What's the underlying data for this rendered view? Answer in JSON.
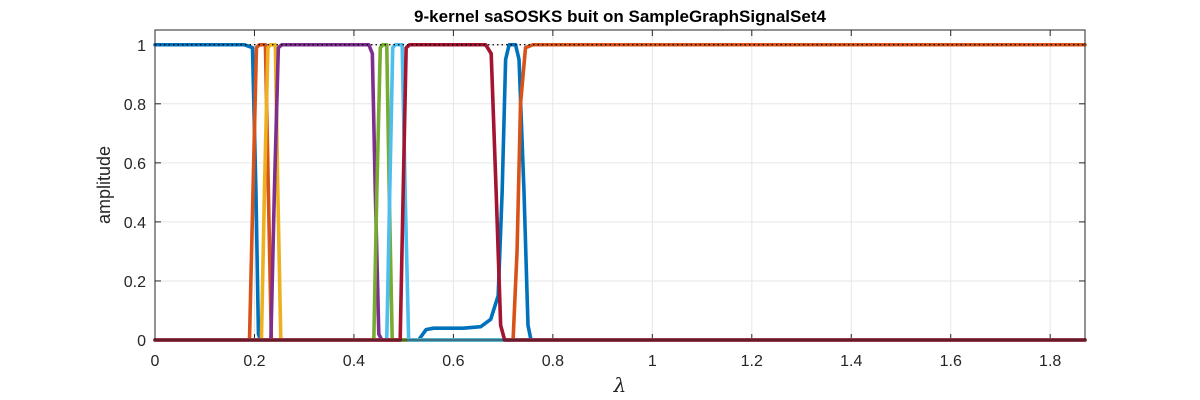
{
  "chart_data": {
    "type": "line",
    "title": "9-kernel saSOSKS buit on SampleGraphSignalSet4",
    "xlabel": "λ",
    "ylabel": "amplitude",
    "xlim": [
      0,
      1.87
    ],
    "ylim": [
      0,
      1.05
    ],
    "xticks": [
      "0",
      "0.2",
      "0.4",
      "0.6",
      "0.8",
      "1",
      "1.2",
      "1.4",
      "1.6",
      "1.8"
    ],
    "yticks": [
      "0",
      "0.2",
      "0.4",
      "0.6",
      "0.8",
      "1"
    ],
    "grid": true,
    "legend": "none",
    "series": [
      {
        "color": "#0072BD",
        "points": [
          [
            0,
            1
          ],
          [
            0.18,
            1
          ],
          [
            0.196,
            0.99
          ],
          [
            0.203,
            0.5
          ],
          [
            0.208,
            0.02
          ],
          [
            0.212,
            0
          ],
          [
            0.53,
            0
          ],
          [
            0.545,
            0.035
          ],
          [
            0.56,
            0.04
          ],
          [
            0.62,
            0.04
          ],
          [
            0.655,
            0.045
          ],
          [
            0.675,
            0.07
          ],
          [
            0.69,
            0.15
          ],
          [
            0.698,
            0.5
          ],
          [
            0.705,
            0.95
          ],
          [
            0.712,
            1
          ],
          [
            0.725,
            1
          ],
          [
            0.732,
            0.95
          ],
          [
            0.742,
            0.5
          ],
          [
            0.75,
            0.05
          ],
          [
            0.756,
            0
          ],
          [
            1.87,
            0
          ]
        ]
      },
      {
        "color": "#D95319",
        "points": [
          [
            0,
            0
          ],
          [
            0.19,
            0
          ],
          [
            0.197,
            0.5
          ],
          [
            0.204,
            0.99
          ],
          [
            0.21,
            1
          ],
          [
            0.222,
            1
          ],
          [
            0.228,
            0.5
          ],
          [
            0.234,
            0
          ],
          [
            0.72,
            0
          ],
          [
            0.728,
            0.3
          ],
          [
            0.735,
            0.8
          ],
          [
            0.745,
            0.99
          ],
          [
            0.76,
            1
          ],
          [
            1.87,
            1
          ]
        ]
      },
      {
        "color": "#EDB120",
        "points": [
          [
            0,
            0
          ],
          [
            0.214,
            0
          ],
          [
            0.22,
            0.5
          ],
          [
            0.227,
            0.99
          ],
          [
            0.232,
            1
          ],
          [
            0.242,
            1
          ],
          [
            0.247,
            0.5
          ],
          [
            0.253,
            0
          ],
          [
            1.87,
            0
          ]
        ]
      },
      {
        "color": "#7E2F8E",
        "points": [
          [
            0,
            0
          ],
          [
            0.233,
            0
          ],
          [
            0.24,
            0.5
          ],
          [
            0.248,
            0.99
          ],
          [
            0.255,
            1
          ],
          [
            0.43,
            1
          ],
          [
            0.437,
            0.97
          ],
          [
            0.443,
            0.5
          ],
          [
            0.45,
            0.02
          ],
          [
            0.456,
            0
          ],
          [
            1.87,
            0
          ]
        ]
      },
      {
        "color": "#77AC30",
        "points": [
          [
            0,
            0
          ],
          [
            0.44,
            0
          ],
          [
            0.446,
            0.5
          ],
          [
            0.453,
            0.99
          ],
          [
            0.458,
            1
          ],
          [
            0.466,
            1
          ],
          [
            0.471,
            0.5
          ],
          [
            0.477,
            0
          ],
          [
            1.87,
            0
          ]
        ]
      },
      {
        "color": "#4DBEEE",
        "points": [
          [
            0,
            0
          ],
          [
            0.466,
            0
          ],
          [
            0.472,
            0.5
          ],
          [
            0.478,
            0.99
          ],
          [
            0.483,
            1
          ],
          [
            0.497,
            1
          ],
          [
            0.503,
            0.5
          ],
          [
            0.51,
            0
          ],
          [
            1.87,
            0
          ]
        ]
      },
      {
        "color": "#A2142F",
        "points": [
          [
            0,
            0
          ],
          [
            0.493,
            0
          ],
          [
            0.499,
            0.5
          ],
          [
            0.505,
            0.99
          ],
          [
            0.512,
            1
          ],
          [
            0.665,
            1
          ],
          [
            0.676,
            0.97
          ],
          [
            0.686,
            0.5
          ],
          [
            0.695,
            0.05
          ],
          [
            0.703,
            0
          ],
          [
            1.87,
            0
          ]
        ]
      }
    ],
    "reference_line": {
      "style": "dotted",
      "color": "#000000",
      "points": [
        [
          0,
          1
        ],
        [
          1.87,
          1
        ]
      ]
    }
  }
}
